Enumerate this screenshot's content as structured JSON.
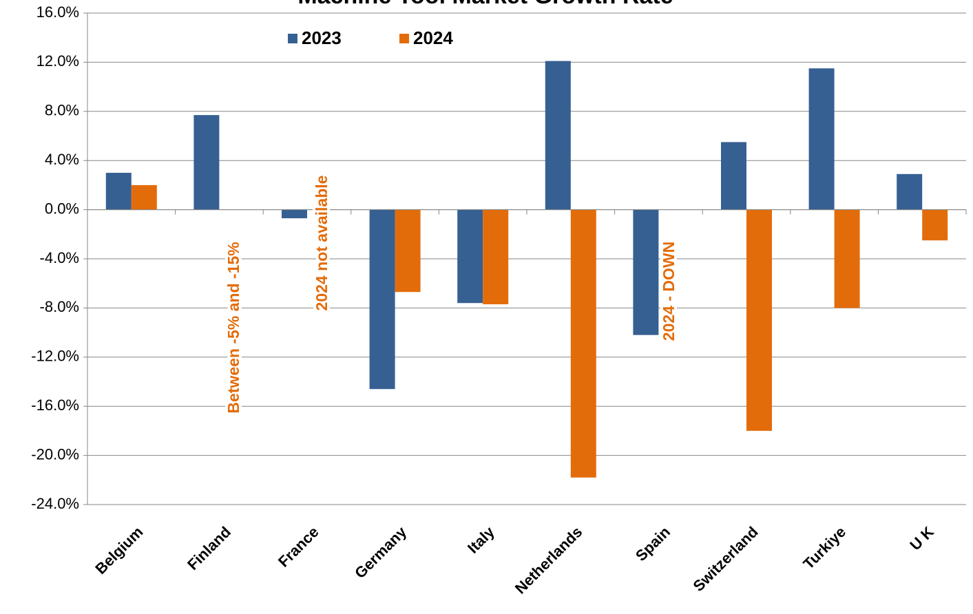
{
  "chart_data": {
    "type": "bar",
    "title": "Machine Tool Market Growth Rate",
    "categories": [
      "Belgium",
      "Finland",
      "France",
      "Germany",
      "Italy",
      "Netherlands",
      "Spain",
      "Switzerland",
      "Turkiye",
      "U K"
    ],
    "series": [
      {
        "name": "2023",
        "color": "#366092",
        "values": [
          3.0,
          7.7,
          -0.7,
          -14.6,
          -7.6,
          12.1,
          -10.2,
          5.5,
          11.5,
          2.9
        ]
      },
      {
        "name": "2024",
        "color": "#e36c0a",
        "values": [
          2.0,
          null,
          null,
          -6.7,
          -7.7,
          -21.8,
          null,
          -18.0,
          -8.0,
          -2.5
        ]
      }
    ],
    "annotations": [
      "Between -5% and -15%",
      "2024 not available",
      "2024 - DOWN"
    ],
    "ylim": [
      -24,
      16
    ],
    "yticks": [
      {
        "value": -24,
        "label": "-24.0%"
      },
      {
        "value": -20,
        "label": "-20.0%"
      },
      {
        "value": -16,
        "label": "-16.0%"
      },
      {
        "value": -12,
        "label": "-12.0%"
      },
      {
        "value": -8,
        "label": "-8.0%"
      },
      {
        "value": -4,
        "label": "-4.0%"
      },
      {
        "value": 0,
        "label": "0.0%"
      },
      {
        "value": 4,
        "label": "4.0%"
      },
      {
        "value": 8,
        "label": "8.0%"
      },
      {
        "value": 12,
        "label": "12.0%"
      },
      {
        "value": 16,
        "label": "16.0%"
      }
    ],
    "grid": true,
    "legend": "top"
  }
}
